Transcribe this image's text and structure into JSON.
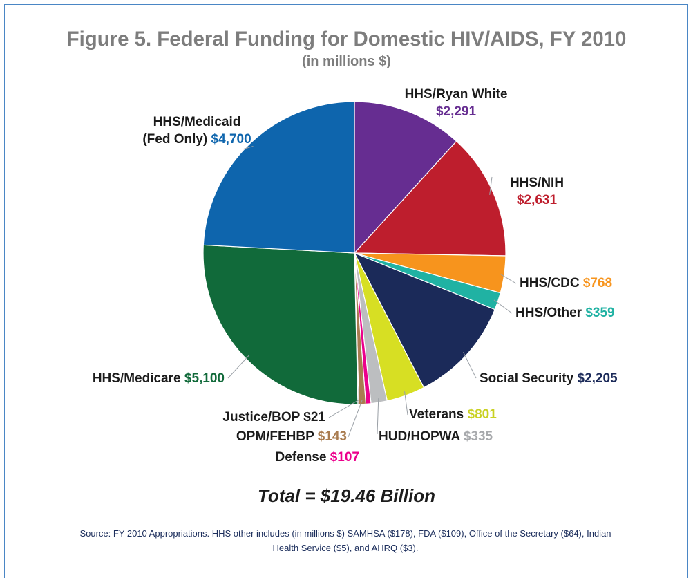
{
  "header": {
    "title": "Figure 5. Federal Funding for Domestic HIV/AIDS, FY 2010",
    "subtitle": "(in millions $)"
  },
  "total_label": "Total = $19.46 Billion",
  "source_note": "Source: FY 2010 Appropriations. HHS other includes (in millions $) SAMHSA ($178), FDA ($109), Office of the Secretary ($64), Indian Health Service ($5), and AHRQ ($3).",
  "chart_data": {
    "type": "pie",
    "title": "Figure 5. Federal Funding for Domestic HIV/AIDS, FY 2010",
    "subtitle": "(in millions $)",
    "total": "Total = $19.46 Billion",
    "slices": [
      {
        "label": "HHS/Ryan White",
        "value": 2291,
        "display": "$2,291",
        "color": "#662d91",
        "label_color": "#662d91"
      },
      {
        "label": "HHS/NIH",
        "value": 2631,
        "display": "$2,631",
        "color": "#be1e2d",
        "label_color": "#be1e2d"
      },
      {
        "label": "HHS/CDC",
        "value": 768,
        "display": "$768",
        "color": "#f7941d",
        "label_color": "#f7941d"
      },
      {
        "label": "HHS/Other",
        "value": 359,
        "display": "$359",
        "color": "#20b2a3",
        "label_color": "#20b2a3"
      },
      {
        "label": "Social Security",
        "value": 2205,
        "display": "$2,205",
        "color": "#1b2a59",
        "label_color": "#1b2a59"
      },
      {
        "label": "Veterans",
        "value": 801,
        "display": "$801",
        "color": "#d7df23",
        "label_color": "#c9d123"
      },
      {
        "label": "HUD/HOPWA",
        "value": 335,
        "display": "$335",
        "color": "#bcbec0",
        "label_color": "#a7a9ac"
      },
      {
        "label": "Defense",
        "value": 107,
        "display": "$107",
        "color": "#ec008c",
        "label_color": "#ec008c"
      },
      {
        "label": "OPM/FEHBP",
        "value": 143,
        "display": "$143",
        "color": "#a97c50",
        "label_color": "#a97c50"
      },
      {
        "label": "Justice/BOP",
        "value": 21,
        "display": "$21",
        "color": "#1b1b1b",
        "label_color": "#1b1b1b"
      },
      {
        "label": "HHS/Medicare",
        "value": 5100,
        "display": "$5,100",
        "color": "#116a3a",
        "label_color": "#116a3a"
      },
      {
        "label": "HHS/Medicaid (Fed Only)",
        "value": 4700,
        "display": "$4,700",
        "color": "#0e65ad",
        "label_color": "#0e65ad"
      }
    ]
  }
}
